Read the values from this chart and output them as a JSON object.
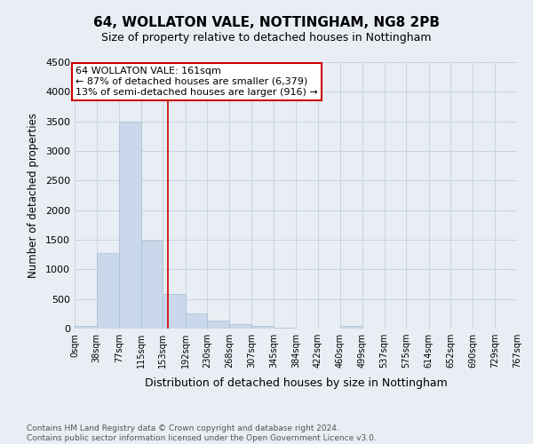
{
  "title": "64, WOLLATON VALE, NOTTINGHAM, NG8 2PB",
  "subtitle": "Size of property relative to detached houses in Nottingham",
  "xlabel": "Distribution of detached houses by size in Nottingham",
  "ylabel": "Number of detached properties",
  "footer_line1": "Contains HM Land Registry data © Crown copyright and database right 2024.",
  "footer_line2": "Contains public sector information licensed under the Open Government Licence v3.0.",
  "bar_color": "#c9d8ea",
  "bar_edge_color": "#a8bfd4",
  "grid_color": "#c8d4e0",
  "annotation_line_color": "#cc0000",
  "property_size": 161,
  "annotation_label": "64 WOLLATON VALE: 161sqm",
  "annotation_line1": "← 87% of detached houses are smaller (6,379)",
  "annotation_line2": "13% of semi-detached houses are larger (916) →",
  "bin_edges": [
    0,
    38,
    77,
    115,
    153,
    192,
    230,
    268,
    307,
    345,
    384,
    422,
    460,
    499,
    537,
    575,
    614,
    652,
    690,
    729,
    767
  ],
  "bin_counts": [
    40,
    1280,
    3500,
    1480,
    580,
    250,
    140,
    80,
    50,
    10,
    5,
    3,
    40,
    2,
    1,
    1,
    1,
    0,
    0,
    0
  ],
  "ylim": [
    0,
    4500
  ],
  "yticks": [
    0,
    500,
    1000,
    1500,
    2000,
    2500,
    3000,
    3500,
    4000,
    4500
  ],
  "background_color": "#e8eef4",
  "plot_bg_color": "#e8eef4",
  "title_fontsize": 11,
  "subtitle_fontsize": 9
}
